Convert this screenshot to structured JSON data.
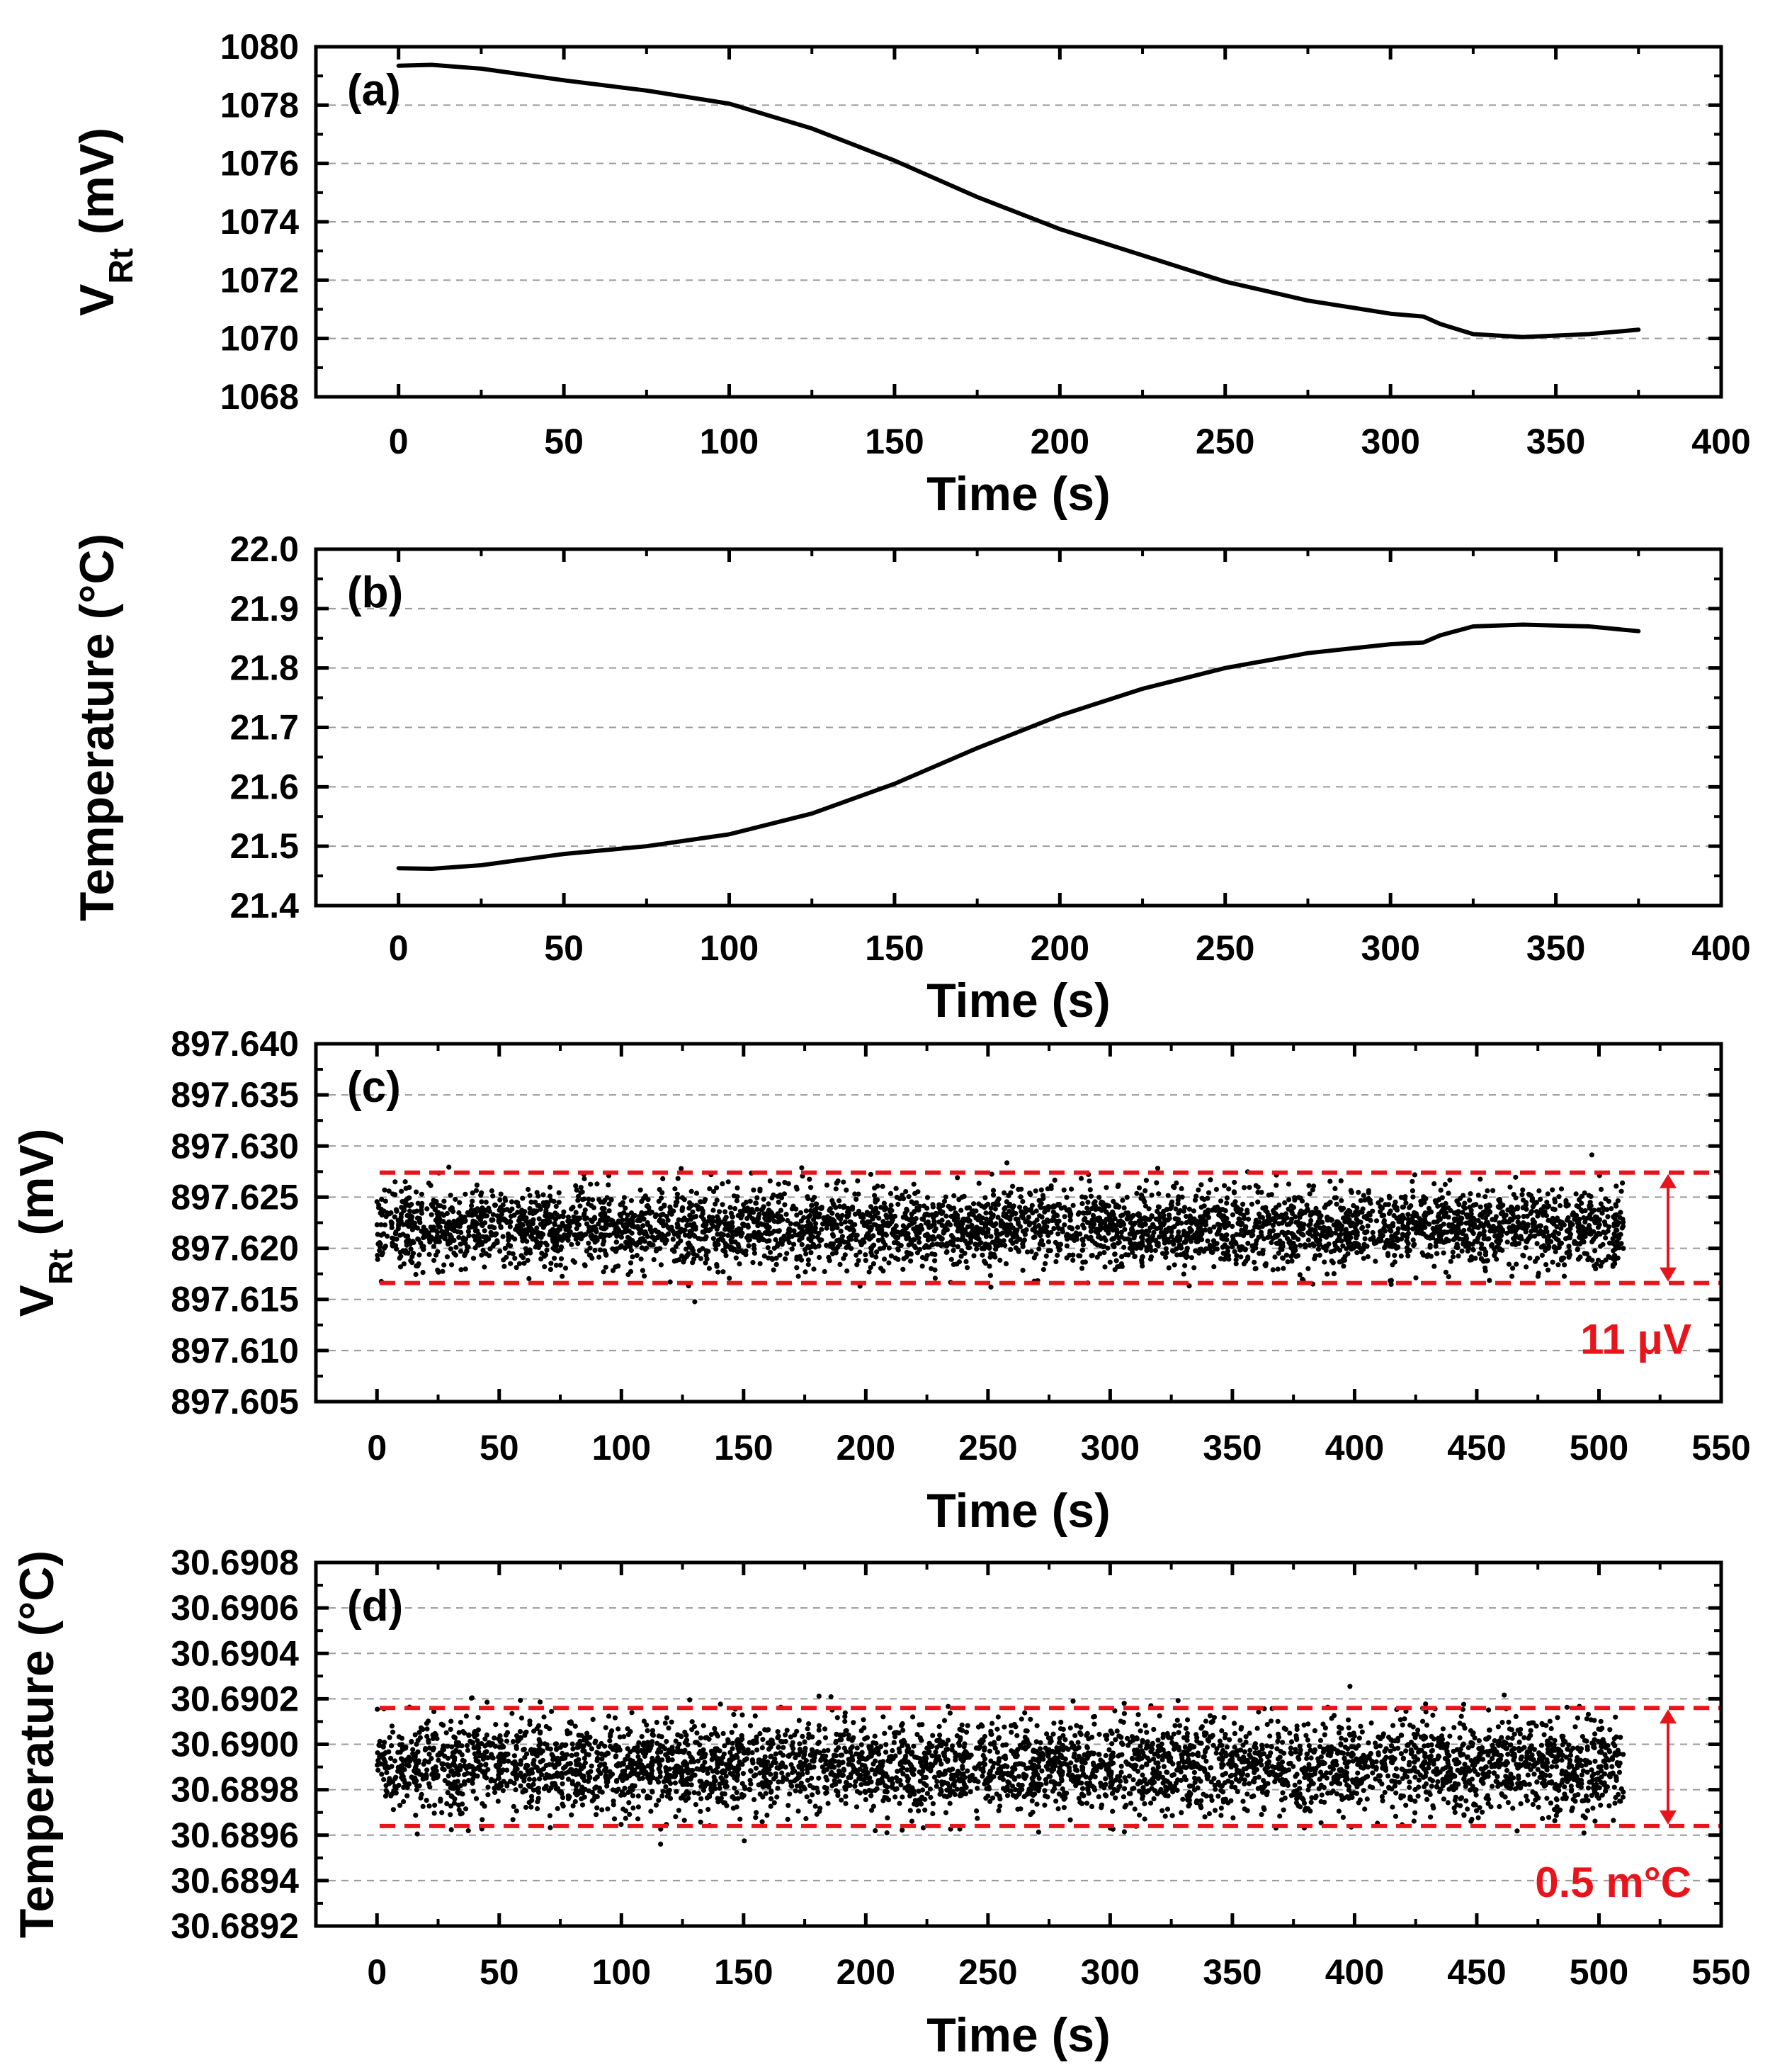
{
  "chart_data": [
    {
      "id": "a",
      "type": "line",
      "panel_label": "(a)",
      "xlabel": "Time (s)",
      "ylabel_main": "V",
      "ylabel_sub": "Rt",
      "ylabel_unit": " (mV)",
      "xlim": [
        -25,
        400
      ],
      "ylim": [
        1068,
        1080
      ],
      "xticks": [
        0,
        50,
        100,
        150,
        200,
        250,
        300,
        350,
        400
      ],
      "yticks": [
        1068,
        1070,
        1072,
        1074,
        1076,
        1078,
        1080
      ],
      "ytick_labels": [
        "1068",
        "1070",
        "1072",
        "1074",
        "1076",
        "1078",
        "1080"
      ],
      "grid_y": true,
      "series": [
        {
          "name": "VRt",
          "x": [
            0,
            10,
            25,
            50,
            75,
            100,
            125,
            150,
            175,
            200,
            225,
            250,
            275,
            300,
            310,
            315,
            325,
            340,
            360,
            375
          ],
          "y": [
            1079.35,
            1079.38,
            1079.25,
            1078.85,
            1078.5,
            1078.05,
            1077.2,
            1076.1,
            1074.85,
            1073.75,
            1072.85,
            1071.95,
            1071.3,
            1070.85,
            1070.75,
            1070.5,
            1070.15,
            1070.05,
            1070.15,
            1070.3
          ]
        }
      ]
    },
    {
      "id": "b",
      "type": "line",
      "panel_label": "(b)",
      "xlabel": "Time (s)",
      "ylabel": "Temperature (°C)",
      "xlim": [
        -25,
        400
      ],
      "ylim": [
        21.4,
        22.0
      ],
      "xticks": [
        0,
        50,
        100,
        150,
        200,
        250,
        300,
        350,
        400
      ],
      "yticks": [
        21.4,
        21.5,
        21.6,
        21.7,
        21.8,
        21.9,
        22.0
      ],
      "ytick_labels": [
        "21.4",
        "21.5",
        "21.6",
        "21.7",
        "21.8",
        "21.9",
        "22.0"
      ],
      "grid_y": true,
      "series": [
        {
          "name": "Temperature",
          "x": [
            0,
            10,
            25,
            50,
            75,
            100,
            125,
            150,
            175,
            200,
            225,
            250,
            275,
            300,
            310,
            315,
            325,
            340,
            360,
            375
          ],
          "y": [
            21.463,
            21.462,
            21.468,
            21.487,
            21.5,
            21.52,
            21.555,
            21.605,
            21.665,
            21.72,
            21.765,
            21.8,
            21.825,
            21.84,
            21.843,
            21.855,
            21.87,
            21.873,
            21.87,
            21.862
          ]
        }
      ]
    },
    {
      "id": "c",
      "type": "scatter",
      "panel_label": "(c)",
      "xlabel": "Time (s)",
      "ylabel_main": "V",
      "ylabel_sub": "Rt",
      "ylabel_unit": " (mV)",
      "xlim": [
        -25,
        550
      ],
      "ylim": [
        897.605,
        897.64
      ],
      "xticks": [
        0,
        50,
        100,
        150,
        200,
        250,
        300,
        350,
        400,
        450,
        500,
        550
      ],
      "yticks": [
        897.605,
        897.61,
        897.615,
        897.62,
        897.625,
        897.63,
        897.635,
        897.64
      ],
      "ytick_labels": [
        "897.605",
        "897.610",
        "897.615",
        "897.620",
        "897.625",
        "897.630",
        "897.635",
        "897.640"
      ],
      "grid_y": true,
      "noise": {
        "x_start": 0,
        "x_end": 510,
        "center": 897.622,
        "sigma": 0.0019,
        "count": 4200,
        "seed": 7
      },
      "band": [
        897.6166,
        897.6274
      ],
      "band_label": "11 μV"
    },
    {
      "id": "d",
      "type": "scatter",
      "panel_label": "(d)",
      "xlabel": "Time (s)",
      "ylabel": "Temperature (°C)",
      "xlim": [
        -25,
        550
      ],
      "ylim": [
        30.6892,
        30.6908
      ],
      "xticks": [
        0,
        50,
        100,
        150,
        200,
        250,
        300,
        350,
        400,
        450,
        500,
        550
      ],
      "yticks": [
        30.6892,
        30.6894,
        30.6896,
        30.6898,
        30.69,
        30.6902,
        30.6904,
        30.6906,
        30.6908
      ],
      "ytick_labels": [
        "30.6892",
        "30.6894",
        "30.6896",
        "30.6898",
        "30.6900",
        "30.6902",
        "30.6904",
        "30.6906",
        "30.6908"
      ],
      "grid_y": true,
      "noise": {
        "x_start": 0,
        "x_end": 510,
        "center": 30.6899,
        "sigma": 0.0001,
        "count": 4200,
        "seed": 13
      },
      "band": [
        30.68964,
        30.69016
      ],
      "band_label": "0.5 m°C"
    }
  ],
  "colors": {
    "line": "#000000",
    "grid": "#9a9a9a",
    "band": "#e8141b"
  }
}
